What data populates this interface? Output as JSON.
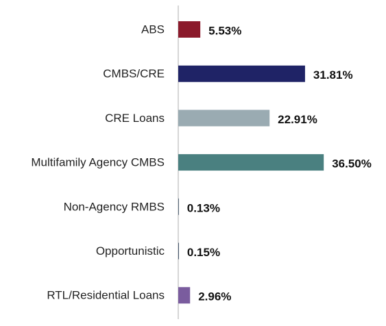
{
  "chart_data": {
    "type": "bar",
    "orientation": "horizontal",
    "categories": [
      "ABS",
      "CMBS/CRE",
      "CRE Loans",
      "Multifamily Agency CMBS",
      "Non-Agency RMBS",
      "Opportunistic",
      "RTL/Residential Loans"
    ],
    "values": [
      5.53,
      31.81,
      22.91,
      36.5,
      0.13,
      0.15,
      2.96
    ],
    "value_labels": [
      "5.53%",
      "31.81%",
      "22.91%",
      "36.50%",
      "0.13%",
      "0.15%",
      "2.96%"
    ],
    "colors": [
      "#8b1a2b",
      "#1f2366",
      "#9aabb2",
      "#4a8080",
      "#2a3f57",
      "#2a3f57",
      "#7a5c9e"
    ],
    "axis_line_color": "#c9c9c9",
    "title": "",
    "xlabel": "",
    "ylabel": "",
    "xlim": [
      0,
      37.5
    ],
    "grid": false,
    "legend": "none"
  }
}
